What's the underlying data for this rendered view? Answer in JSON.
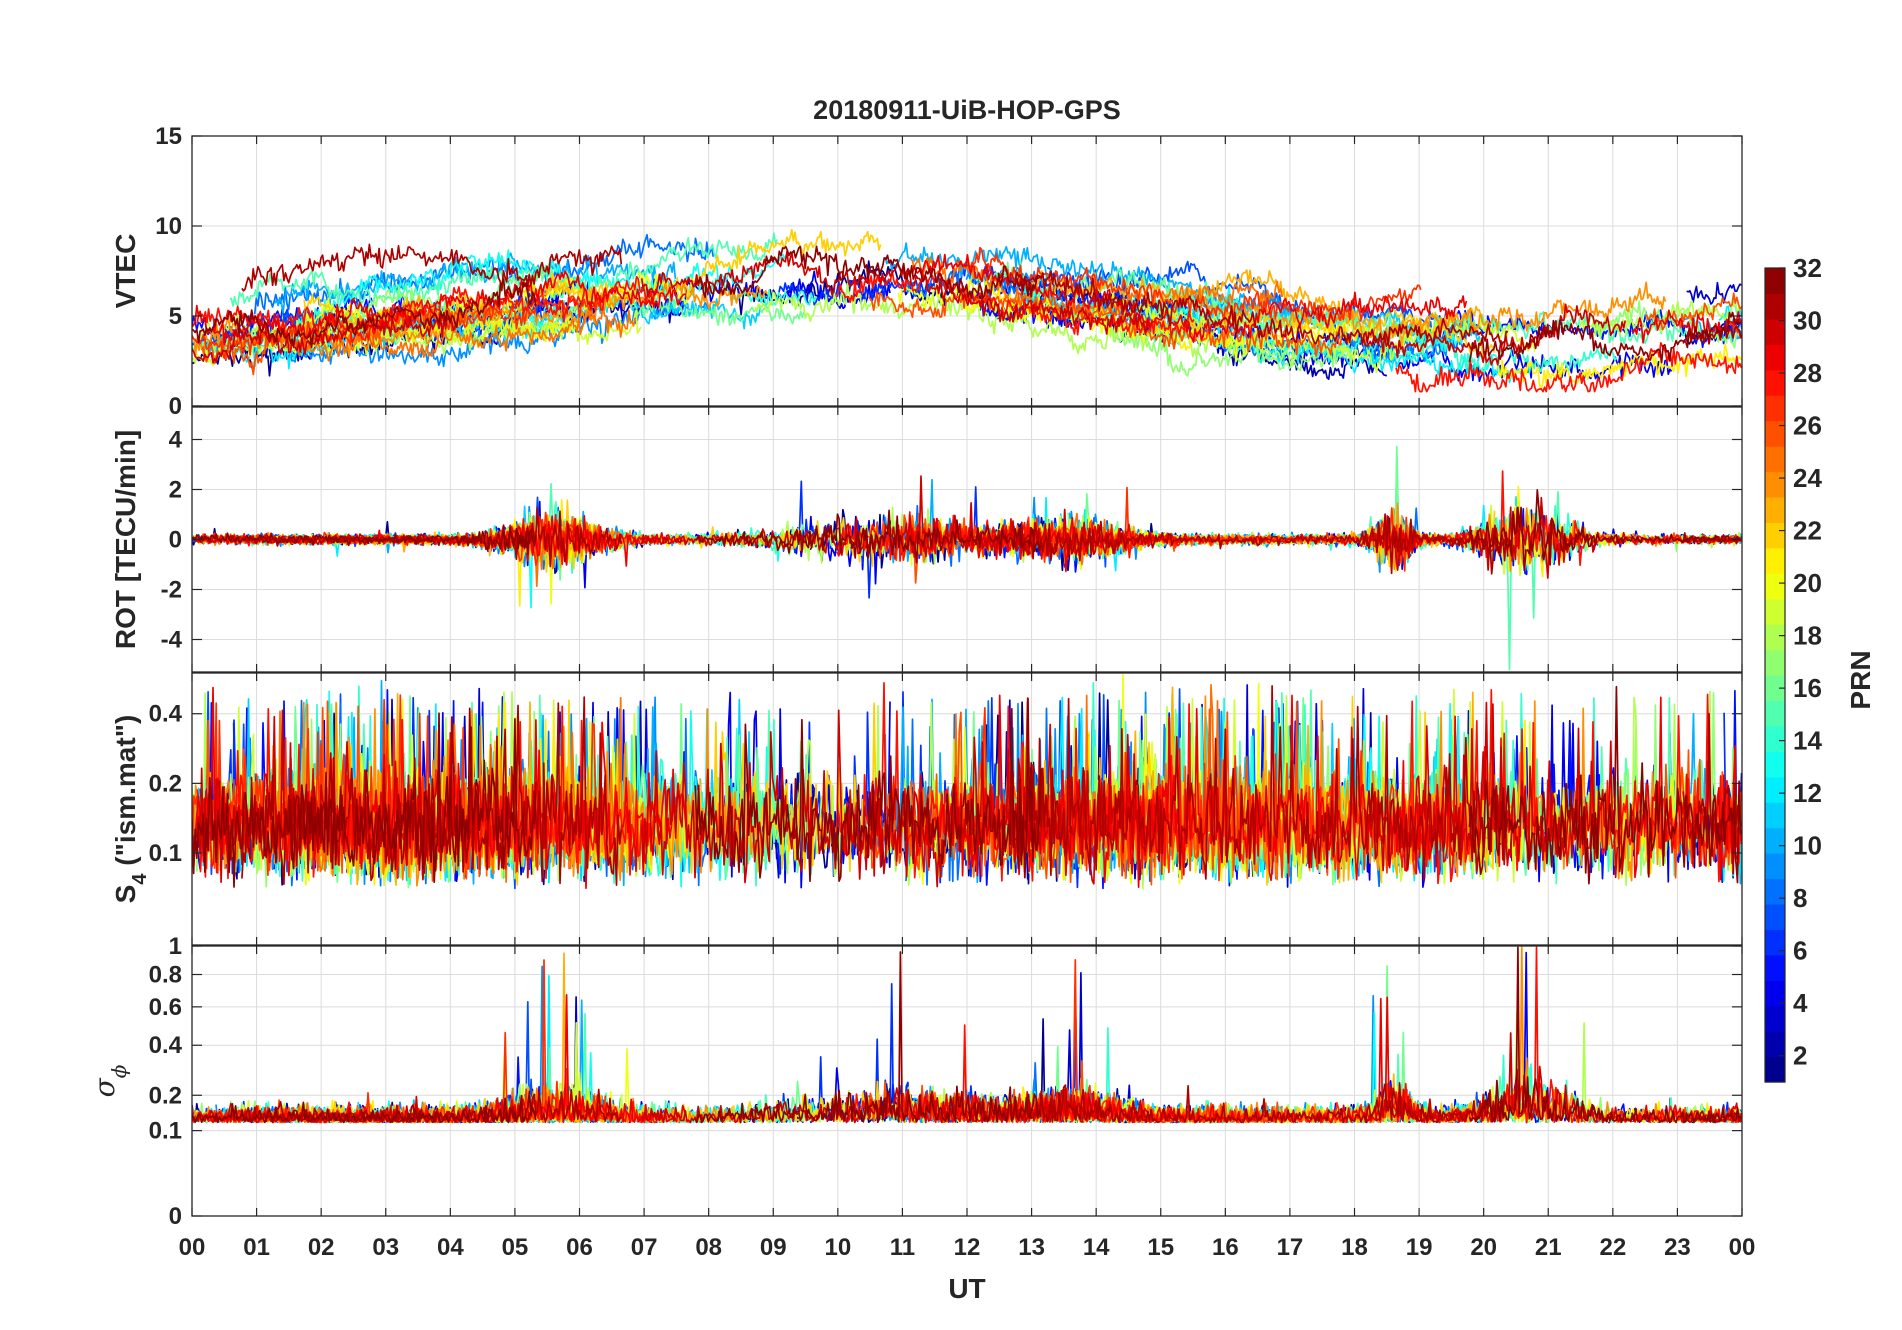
{
  "chart_data": {
    "type": "line",
    "title": "20180911-UiB-HOP-GPS",
    "xlabel": "UT",
    "x_tick_labels": [
      "00",
      "01",
      "02",
      "03",
      "04",
      "05",
      "06",
      "07",
      "08",
      "09",
      "10",
      "11",
      "12",
      "13",
      "14",
      "15",
      "16",
      "17",
      "18",
      "19",
      "20",
      "21",
      "22",
      "23",
      "00"
    ],
    "xlim": [
      0,
      24
    ],
    "colorbar": {
      "label": "PRN",
      "range": [
        1,
        32
      ],
      "tick_labels": [
        "2",
        "4",
        "6",
        "8",
        "10",
        "12",
        "14",
        "16",
        "18",
        "20",
        "22",
        "24",
        "26",
        "28",
        "30",
        "32"
      ],
      "colormap": "jet",
      "colors": [
        "#00008f",
        "#0000ff",
        "#0080ff",
        "#00ffff",
        "#80ff80",
        "#ffff00",
        "#ff8000",
        "#ff0000",
        "#800000"
      ]
    },
    "panels": [
      {
        "id": "vtec",
        "ylabel": "VTEC",
        "ylim": [
          0,
          15
        ],
        "y_ticks": [
          0,
          5,
          10,
          15
        ],
        "y_tick_labels": [
          "0",
          "5",
          "10",
          "15"
        ],
        "scale": "linear"
      },
      {
        "id": "rot",
        "ylabel": "ROT [TECU/min]",
        "ylim": [
          -5.3,
          5.3
        ],
        "y_ticks": [
          -4,
          -2,
          0,
          2,
          4
        ],
        "y_tick_labels": [
          "-4",
          "-2",
          "0",
          "2",
          "4"
        ],
        "scale": "linear"
      },
      {
        "id": "s4",
        "ylabel_main": "S",
        "ylabel_sub": "4",
        "ylabel_rest": " (\"ism.mat\")",
        "ylim": [
          0.04,
          0.6
        ],
        "y_ticks": [
          0.1,
          0.2,
          0.4
        ],
        "y_tick_labels": [
          "0.1",
          "0.2",
          "0.4"
        ],
        "scale": "log"
      },
      {
        "id": "sigma_phi",
        "ylabel_main": "σ",
        "ylabel_sub": "ϕ",
        "ylim": [
          0,
          1.0
        ],
        "y_ticks": [
          0,
          0.1,
          0.2,
          0.4,
          0.6,
          0.8,
          1.0
        ],
        "y_tick_labels": [
          "0",
          "0.1",
          "0.2",
          "0.4",
          "0.6",
          "0.8",
          "1"
        ],
        "scale": "sqrt"
      }
    ]
  }
}
